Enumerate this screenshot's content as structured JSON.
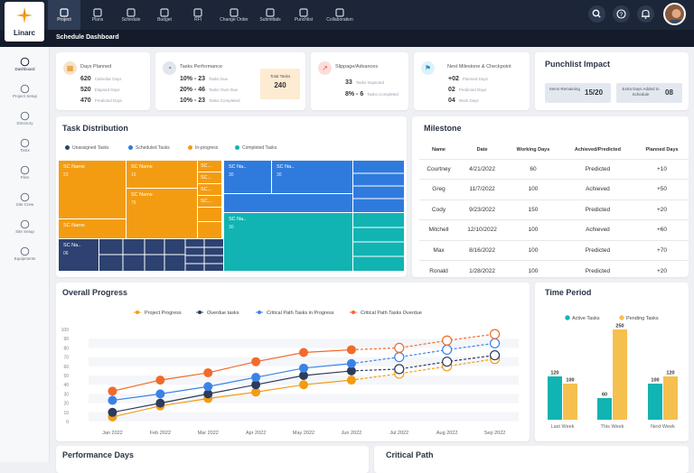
{
  "app": {
    "logo_text": "Linarc",
    "page_title": "Schedule Dashboard"
  },
  "colors": {
    "nav_bg": "#1c2638",
    "orange": "#f39c12",
    "blue": "#2f7bdd",
    "navy": "#2d4271",
    "teal": "#11b3b3",
    "yellow": "#f6c04e"
  },
  "nav": [
    {
      "label": "Project",
      "icon": "grid-icon",
      "active": true
    },
    {
      "label": "Plans",
      "icon": "map-icon"
    },
    {
      "label": "Schedule",
      "icon": "calendar-icon"
    },
    {
      "label": "Budget",
      "icon": "wallet-icon"
    },
    {
      "label": "RFI",
      "icon": "inbox-icon"
    },
    {
      "label": "Change Order",
      "icon": "monitor-icon"
    },
    {
      "label": "Submittals",
      "icon": "cloud-icon"
    },
    {
      "label": "Punchlist",
      "icon": "stopwatch-icon"
    },
    {
      "label": "Collaboration",
      "icon": "chat-icon"
    }
  ],
  "sidebar": [
    {
      "label": "Dashboard",
      "icon": "gauge-icon",
      "active": true
    },
    {
      "label": "Project Setup",
      "icon": "tools-icon"
    },
    {
      "label": "Directory",
      "icon": "directory-icon"
    },
    {
      "label": "Tests",
      "icon": "flask-icon"
    },
    {
      "label": "Files",
      "icon": "file-icon"
    },
    {
      "label": "Site Crew",
      "icon": "people-icon"
    },
    {
      "label": "Site Setup",
      "icon": "settings-icon"
    },
    {
      "label": "Equipments",
      "icon": "equipment-icon"
    }
  ],
  "kpis": {
    "days_planned": {
      "title": "Days Planned",
      "rows": [
        {
          "value": "620",
          "label": "Calendar Days"
        },
        {
          "value": "520",
          "label": "Elapsed Days"
        },
        {
          "value": "470",
          "label": "Predicted Days"
        }
      ]
    },
    "tasks_performance": {
      "title": "Tasks Performance",
      "rows": [
        {
          "value": "10% - 23",
          "label": "Tasks Due"
        },
        {
          "value": "20% - 46",
          "label": "Tasks Over Due"
        },
        {
          "value": "10% - 23",
          "label": "Tasks Completed"
        }
      ],
      "total_label": "Total Tasks",
      "total_value": "240"
    },
    "slippage": {
      "title": "Slippage/Advances",
      "rows": [
        {
          "value": "33",
          "label": "Tasks Impacted"
        },
        {
          "value": "8% - 6",
          "label": "Tasks Completed"
        }
      ]
    },
    "milestone": {
      "title": "Next Milestone & Checkpoint",
      "rows": [
        {
          "value": "+02",
          "label": "Planned Days"
        },
        {
          "value": "02",
          "label": "Predicted Days"
        },
        {
          "value": "04",
          "label": "Work Days"
        }
      ]
    },
    "punchlist": {
      "title": "Punchlist Impact",
      "items_label": "Items Remaining",
      "items_value": "15/20",
      "extra_label": "Extra Days Added to Schedule",
      "extra_value": "08"
    }
  },
  "task_distribution": {
    "title": "Task Distribution",
    "legend": [
      {
        "label": "Unassigned Tasks",
        "color": "#2d4271"
      },
      {
        "label": "Scheduled Tasks",
        "color": "#2f7bdd"
      },
      {
        "label": "In-progress",
        "color": "#f39c12"
      },
      {
        "label": "Completed Tasks",
        "color": "#11b3b3"
      }
    ],
    "blocks": [
      {
        "name": "SC Name",
        "value": "23"
      },
      {
        "name": "SC Name",
        "value": "16"
      },
      {
        "name": "SC Name",
        "value": "75"
      },
      {
        "name": "SC Name",
        "value": ""
      },
      {
        "name": "SC...",
        "value": ""
      },
      {
        "name": "SC...",
        "value": ""
      },
      {
        "name": "SC...",
        "value": ""
      },
      {
        "name": "SC...",
        "value": ""
      },
      {
        "name": "SC Na..",
        "value": "06"
      },
      {
        "name": "SC Na..",
        "value": "30"
      },
      {
        "name": "SC Na..",
        "value": "30"
      },
      {
        "name": "SC Na..",
        "value": "30"
      },
      {
        "name": "SC Na..",
        "value": "30"
      }
    ]
  },
  "milestone_table": {
    "title": "Milestone",
    "headers": [
      "Name",
      "Date",
      "Working Days",
      "Achieved/Predicted",
      "Planned Days"
    ],
    "rows": [
      [
        "Courtney",
        "4/21/2022",
        "60",
        "Predicted",
        "+10"
      ],
      [
        "Greg",
        "11/7/2022",
        "100",
        "Achieved",
        "+50"
      ],
      [
        "Cody",
        "9/23/2022",
        "150",
        "Predicted",
        "+20"
      ],
      [
        "Mitchell",
        "12/10/2022",
        "100",
        "Achieved",
        "+60"
      ],
      [
        "Max",
        "8/16/2022",
        "100",
        "Predicted",
        "+70"
      ],
      [
        "Ronald",
        "1/28/2022",
        "100",
        "Predicted",
        "+20"
      ]
    ]
  },
  "chart_data": [
    {
      "type": "line",
      "title": "Overall Progress",
      "categories": [
        "Jan 2022",
        "Feb 2022",
        "Mar 2022",
        "Apr 2022",
        "May 2022",
        "Jun 2022",
        "Jul 2022",
        "Aug 2022",
        "Sep 2022"
      ],
      "ylim": [
        0,
        100
      ],
      "yticks": [
        "0",
        "10",
        "20",
        "30",
        "40",
        "50",
        "60",
        "70",
        "80",
        "90",
        "100"
      ],
      "actual_until_index": 5,
      "grid": true,
      "legend_position": "top",
      "series": [
        {
          "name": "Project Progress",
          "color": "#f39c12",
          "values": [
            5,
            17,
            25,
            32,
            40,
            45,
            52,
            60,
            68
          ]
        },
        {
          "name": "Overdue tasks",
          "color": "#2d3b5c",
          "values": [
            10,
            20,
            30,
            40,
            50,
            55,
            57,
            65,
            72
          ]
        },
        {
          "name": "Critical Path Tasks in Progress",
          "color": "#3b82e8",
          "values": [
            23,
            30,
            38,
            48,
            58,
            63,
            70,
            78,
            85
          ]
        },
        {
          "name": "Critical Path Tasks Overdue",
          "color": "#f26a2b",
          "values": [
            33,
            45,
            53,
            65,
            75,
            78,
            80,
            88,
            95
          ]
        }
      ]
    },
    {
      "type": "bar",
      "title": "Time Period",
      "categories": [
        "Last Week",
        "This Week",
        "Next Week"
      ],
      "legend_position": "top",
      "ylim": [
        0,
        260
      ],
      "series": [
        {
          "name": "Active Tasks",
          "color": "#11b3b3",
          "values": [
            120,
            60,
            100
          ]
        },
        {
          "name": "Pending Tasks",
          "color": "#f6c04e",
          "values": [
            100,
            250,
            120
          ]
        }
      ]
    }
  ],
  "bottom": {
    "performance_title": "Performance Days",
    "critical_title": "Critical Path"
  }
}
